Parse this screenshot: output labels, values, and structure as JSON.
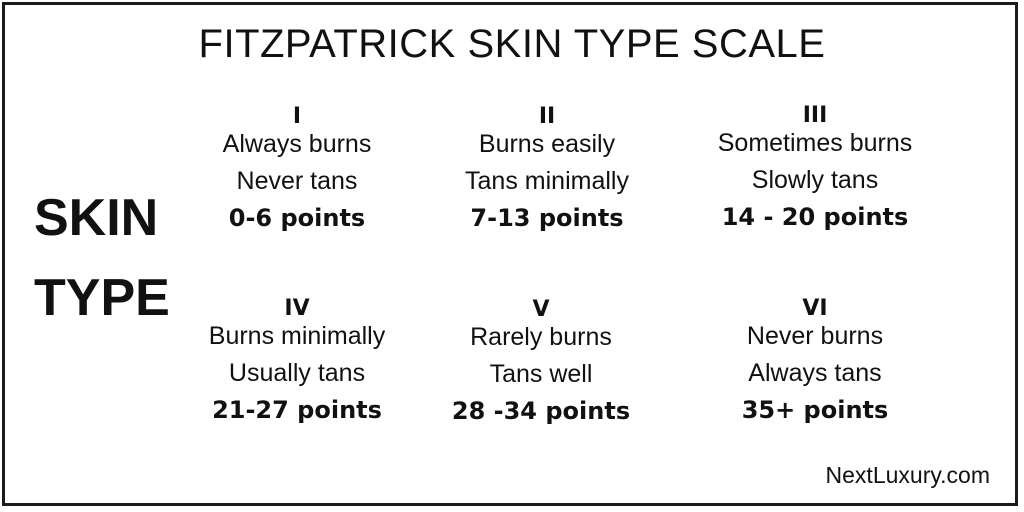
{
  "title": "FITZPATRICK SKIN TYPE SCALE",
  "side_label": [
    "SKIN",
    "TYPE"
  ],
  "types": [
    {
      "numeral": "I",
      "line1": "Always burns",
      "line2": "Never tans",
      "points": "0-6 points"
    },
    {
      "numeral": "II",
      "line1": "Burns easily",
      "line2": "Tans minimally",
      "points": "7-13 points"
    },
    {
      "numeral": "III",
      "line1": "Sometimes burns",
      "line2": "Slowly  tans",
      "points": "14 - 20 points"
    },
    {
      "numeral": "IV",
      "line1": "Burns minimally",
      "line2": "Usually tans",
      "points": "21-27 points"
    },
    {
      "numeral": "V",
      "line1": "Rarely burns",
      "line2": "Tans well",
      "points": "28 -34 points"
    },
    {
      "numeral": "VI",
      "line1": "Never burns",
      "line2": "Always tans",
      "points": "35+ points"
    }
  ],
  "brand": "NextLuxury.com"
}
